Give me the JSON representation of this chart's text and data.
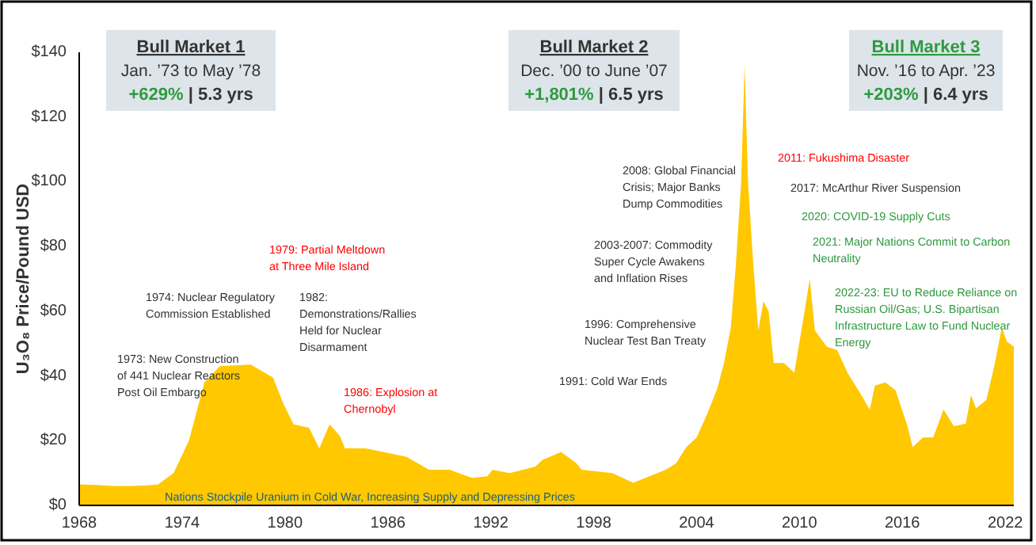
{
  "chart_data": {
    "type": "area",
    "ylabel": "U₃O₈ Price/Pound USD",
    "x": [
      1968,
      1969,
      1970,
      1971,
      1972,
      1972.6,
      1973.5,
      1974.4,
      1975.3,
      1976.2,
      1978,
      1979.3,
      1979.9,
      1980.5,
      1981.4,
      1982,
      1982.6,
      1983.2,
      1983.5,
      1984.7,
      1987.1,
      1988.4,
      1989.6,
      1990.9,
      1991.8,
      1992.1,
      1993.1,
      1994.6,
      1995,
      1996.1,
      1997,
      1997.3,
      1999.1,
      2000.3,
      2002.2,
      2002.8,
      2003.4,
      2004,
      2004.6,
      2005.2,
      2005.6,
      2006,
      2006.3,
      2006.6,
      2006.8,
      2007,
      2007.3,
      2007.6,
      2007.9,
      2008.2,
      2008.5,
      2009.1,
      2009.7,
      2010.3,
      2010.6,
      2010.9,
      2011.6,
      2012.2,
      2012.8,
      2013.5,
      2014.1,
      2014.4,
      2015,
      2015.6,
      2016.3,
      2016.6,
      2017.2,
      2017.8,
      2018.4,
      2019,
      2019.7,
      2020,
      2020.3,
      2020.9,
      2021.4,
      2021.8,
      2022.1,
      2022.5
    ],
    "values": [
      6.5,
      6.3,
      6,
      6,
      6.2,
      6.5,
      10,
      20,
      38,
      43,
      43.5,
      39.5,
      31.5,
      25,
      24,
      17.6,
      25,
      21.5,
      17.6,
      17.6,
      15,
      11,
      11,
      8.5,
      9,
      11,
      10,
      12,
      14,
      16.5,
      13,
      11,
      10,
      7,
      11,
      13,
      18,
      21,
      28,
      36,
      44,
      55,
      75,
      100,
      136,
      100,
      75,
      54,
      63,
      60,
      44,
      44,
      41,
      60,
      70,
      54,
      49,
      48,
      41,
      35,
      29.6,
      37,
      38,
      35.6,
      24.5,
      18,
      21,
      21,
      29.6,
      24.5,
      25.3,
      34,
      30,
      32.6,
      44,
      55,
      50.6,
      49
    ],
    "color": "#ffc800",
    "xlim": [
      1968,
      2022.5
    ],
    "xticks": [
      1968,
      1974,
      1980,
      1986,
      1992,
      1998,
      2004,
      2010,
      2016,
      2022
    ],
    "ylim": [
      0,
      140
    ],
    "yticks": [
      {
        "value": 0,
        "label": "$0"
      },
      {
        "value": 20,
        "label": "$20"
      },
      {
        "value": 40,
        "label": "$40"
      },
      {
        "value": 60,
        "label": "$60"
      },
      {
        "value": 80,
        "label": "$80"
      },
      {
        "value": 100,
        "label": "$100"
      },
      {
        "value": 120,
        "label": "$120"
      },
      {
        "value": 140,
        "label": "$140"
      }
    ],
    "grid": false,
    "annotations": [
      "Bull Market 1",
      "Jan. ’73 to May ’78",
      "+629% | 5.3 yrs",
      "Bull Market 2",
      "Dec. ’00 to June ’07",
      "+1,801% | 6.5 yrs",
      "Bull Market 3",
      "Nov. ’16 to Apr. ’23",
      "+203% | 6.4 yrs",
      "1979: Partial Meltdown\nat Three Mile Island",
      "1974: Nuclear Regulatory\nCommission Established",
      "1982:\nDemonstrations/Rallies\nHeld for Nuclear\nDisarmament",
      "1973: New Construction\nof 441 Nuclear Reactors\nPost Oil Embargo",
      "1986: Explosion at\nChernobyl",
      "Nations Stockpile Uranium in Cold War, Increasing Supply and Depressing Prices",
      "1991: Cold War Ends",
      "1996: Comprehensive\nNuclear Test Ban Treaty",
      "2003-2007: Commodity\nSuper Cycle Awakens\nand Inflation Rises",
      "2008: Global Financial\nCrisis; Major Banks\nDump Commodities",
      "2011: Fukushima Disaster",
      "2017: McArthur River Suspension",
      "2020: COVID-19 Supply Cuts",
      "2021: Major Nations Commit to Carbon\nNeutrality",
      "2022-23: EU to Reduce Reliance on\nRussian Oil/Gas; U.S. Bipartisan\nInfrastructure Law to Fund Nuclear\nEnergy"
    ]
  }
}
